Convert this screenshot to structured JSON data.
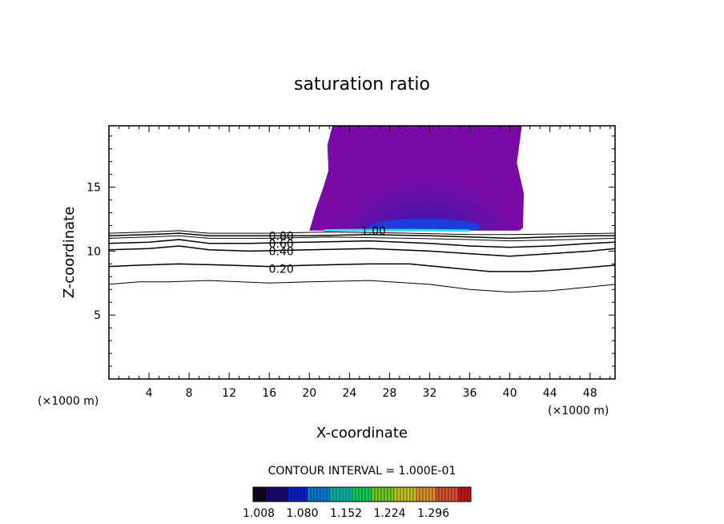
{
  "chart_data": {
    "type": "contour",
    "title": "saturation ratio",
    "xlabel": "X-coordinate",
    "ylabel": "Z-coordinate",
    "x_unit": "(×1000 m)",
    "x_unit_right": "(×1000 m)",
    "xlim": [
      0,
      50.5
    ],
    "ylim": [
      0,
      19.8
    ],
    "x_ticks": [
      4,
      8,
      12,
      16,
      20,
      24,
      28,
      32,
      36,
      40,
      44,
      48
    ],
    "y_ticks": [
      5,
      10,
      15
    ],
    "grid": false,
    "contour_interval_label": "CONTOUR INTERVAL = 1.000E-01",
    "contour_lines": [
      {
        "level": "0.20",
        "label_at": [
          17.2,
          8.6
        ],
        "points": [
          [
            0,
            8.8
          ],
          [
            3,
            8.9
          ],
          [
            7,
            9.0
          ],
          [
            12,
            8.9
          ],
          [
            16,
            8.8
          ],
          [
            20,
            8.9
          ],
          [
            26,
            9.0
          ],
          [
            30,
            9.0
          ],
          [
            34,
            8.7
          ],
          [
            38,
            8.4
          ],
          [
            42,
            8.4
          ],
          [
            46,
            8.6
          ],
          [
            50.5,
            8.9
          ]
        ]
      },
      {
        "level": "0.40",
        "label_at": [
          17.2,
          10.0
        ],
        "points": [
          [
            0,
            10.1
          ],
          [
            4,
            10.2
          ],
          [
            7,
            10.4
          ],
          [
            10,
            10.1
          ],
          [
            14,
            10.0
          ],
          [
            20,
            10.1
          ],
          [
            26,
            10.2
          ],
          [
            32,
            10.0
          ],
          [
            36,
            9.8
          ],
          [
            40,
            9.6
          ],
          [
            44,
            9.8
          ],
          [
            48,
            10.0
          ],
          [
            50.5,
            10.2
          ]
        ]
      },
      {
        "level": "0.60",
        "label_at": [
          17.2,
          10.6
        ],
        "points": [
          [
            0,
            10.6
          ],
          [
            4,
            10.7
          ],
          [
            7,
            10.9
          ],
          [
            10,
            10.6
          ],
          [
            14,
            10.6
          ],
          [
            20,
            10.7
          ],
          [
            26,
            10.8
          ],
          [
            32,
            10.6
          ],
          [
            36,
            10.4
          ],
          [
            40,
            10.3
          ],
          [
            44,
            10.4
          ],
          [
            48,
            10.6
          ],
          [
            50.5,
            10.7
          ]
        ]
      },
      {
        "level": "0.80",
        "label_at": [
          17.2,
          11.2
        ],
        "points": [
          [
            0,
            11.2
          ],
          [
            4,
            11.3
          ],
          [
            7,
            11.4
          ],
          [
            10,
            11.2
          ],
          [
            14,
            11.2
          ],
          [
            20,
            11.2
          ],
          [
            26,
            11.3
          ],
          [
            32,
            11.2
          ],
          [
            36,
            11.1
          ],
          [
            40,
            11.0
          ],
          [
            44,
            11.1
          ],
          [
            48,
            11.2
          ],
          [
            50.5,
            11.2
          ]
        ]
      },
      {
        "level": "1.00",
        "label_at": [
          26.4,
          11.6
        ],
        "points": [
          [
            21.5,
            11.62
          ],
          [
            24,
            11.64
          ],
          [
            28,
            11.64
          ],
          [
            32,
            11.63
          ],
          [
            36,
            11.6
          ]
        ]
      }
    ],
    "unlabeled_lines": [
      {
        "points": [
          [
            0,
            7.4
          ],
          [
            3,
            7.6
          ],
          [
            6,
            7.6
          ],
          [
            10,
            7.7
          ],
          [
            16,
            7.5
          ],
          [
            20,
            7.6
          ],
          [
            26,
            7.7
          ],
          [
            32,
            7.4
          ],
          [
            36,
            7.0
          ],
          [
            40,
            6.8
          ],
          [
            44,
            6.9
          ],
          [
            48,
            7.2
          ],
          [
            50.5,
            7.4
          ]
        ]
      },
      {
        "points": [
          [
            0,
            11.0
          ],
          [
            4,
            11.1
          ],
          [
            7,
            11.2
          ],
          [
            10,
            11.0
          ],
          [
            16,
            11.0
          ],
          [
            22,
            11.1
          ],
          [
            30,
            11.0
          ],
          [
            36,
            10.9
          ],
          [
            40,
            10.8
          ],
          [
            46,
            10.9
          ],
          [
            50.5,
            11.0
          ]
        ]
      },
      {
        "points": [
          [
            0,
            11.4
          ],
          [
            4,
            11.5
          ],
          [
            7,
            11.6
          ],
          [
            10,
            11.4
          ],
          [
            16,
            11.4
          ],
          [
            22,
            11.5
          ],
          [
            30,
            11.4
          ],
          [
            36,
            11.3
          ],
          [
            40,
            11.3
          ],
          [
            46,
            11.35
          ],
          [
            50.5,
            11.4
          ]
        ]
      }
    ],
    "shaded_region_outline": [
      [
        22.3,
        19.8
      ],
      [
        21.8,
        18.3
      ],
      [
        21.9,
        16.3
      ],
      [
        21.4,
        15.0
      ],
      [
        20.6,
        13.2
      ],
      [
        20.0,
        11.6
      ],
      [
        40.9,
        11.6
      ],
      [
        41.3,
        11.8
      ],
      [
        41.4,
        14.5
      ],
      [
        40.7,
        16.9
      ],
      [
        41.2,
        19.8
      ]
    ],
    "shaded_core": {
      "center": [
        31.5,
        12.4
      ],
      "inner_center": [
        31.5,
        11.9
      ]
    },
    "colorbar": {
      "colors": [
        "#110022",
        "#1a0a6e",
        "#0b20c8",
        "#0a78d0",
        "#08b0a0",
        "#10c858",
        "#70c828",
        "#c0c028",
        "#d89030",
        "#d05030",
        "#c01818"
      ],
      "tick_labels": [
        "1.008",
        "1.080",
        "1.152",
        "1.224",
        "1.296"
      ]
    }
  }
}
